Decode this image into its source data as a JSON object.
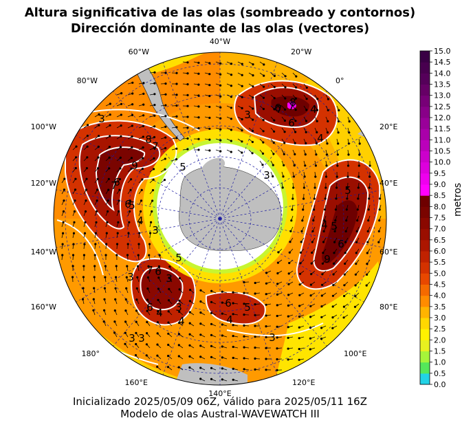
{
  "title_line1": "Altura significativa de las olas (sombreado y contornos)",
  "title_line2": "Dirección dominante de las olas (vectores)",
  "footer_line1": "Inicializado 2025/05/09 06Z, válido para 2025/05/11 16Z",
  "footer_line2": "Modelo de olas Austral-WAVEWATCH III",
  "colorbar": {
    "label": "metros",
    "ticks": [
      "0.0",
      "0.5",
      "1.0",
      "1.5",
      "2.0",
      "2.5",
      "3.0",
      "3.5",
      "4.0",
      "4.5",
      "5.0",
      "5.5",
      "6.0",
      "6.5",
      "7.0",
      "7.5",
      "8.0",
      "8.5",
      "9.0",
      "9.5",
      "10.0",
      "10.5",
      "11.0",
      "11.5",
      "12.0",
      "12.5",
      "13.0",
      "13.5",
      "14.0",
      "14.5",
      "15.0"
    ],
    "colors": [
      "#22d3e6",
      "#55e85a",
      "#a6f53a",
      "#e8f020",
      "#fff200",
      "#ffd800",
      "#ffb400",
      "#ff8c00",
      "#f56a00",
      "#e84800",
      "#d43200",
      "#c02200",
      "#ac1600",
      "#9a0e00",
      "#8a0800",
      "#7a0400",
      "#6e0000",
      "#ff00ff",
      "#ee00ee",
      "#dd00dd",
      "#cc00cc",
      "#bb00bb",
      "#aa00aa",
      "#990099",
      "#880088",
      "#770077",
      "#660066",
      "#55005a",
      "#48004f",
      "#3a0045"
    ]
  },
  "meridian_labels": [
    "40°W",
    "20°W",
    "0°",
    "20°E",
    "40°E",
    "60°E",
    "80°E",
    "100°E",
    "120°E",
    "140°E",
    "160°E",
    "180°",
    "160°W",
    "140°W",
    "120°W",
    "100°W",
    "80°W",
    "60°W"
  ],
  "contour_labels": [
    "3",
    "8",
    "7",
    "9",
    "6",
    "7",
    "6",
    "5",
    "4",
    "3",
    "5",
    "6",
    "7",
    "3",
    "4",
    "8",
    "7",
    "6",
    "4",
    "5",
    "4",
    "5",
    "6",
    "9",
    "7",
    "6",
    "3",
    "3",
    "6",
    "4",
    "3",
    "4",
    "5",
    "6",
    "5",
    "4",
    "3",
    "3",
    "3",
    "3"
  ],
  "map_colors": {
    "land": "#bfbfbf",
    "ice": "#ffffff",
    "contour": "#ffffff",
    "graticule": "#1a1aa0"
  }
}
